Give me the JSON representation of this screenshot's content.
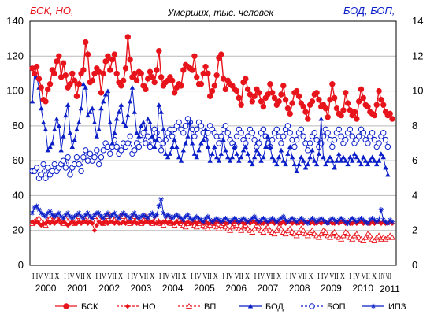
{
  "chart_data": {
    "type": "line",
    "title": "Умерших, тыс. человек",
    "left_axis_title": "БСК, НО,",
    "right_axis_title": "БОД, БОП,",
    "left_axis": {
      "ylim": [
        0,
        140
      ],
      "ticks": [
        "0",
        "20",
        "40",
        "60",
        "80",
        "100",
        "120",
        "140"
      ]
    },
    "right_axis": {
      "ylim": [
        0,
        14
      ],
      "ticks": [
        "0",
        "2",
        "4",
        "6",
        "8",
        "10",
        "12",
        "14"
      ]
    },
    "years": [
      "2000",
      "2001",
      "2002",
      "2003",
      "2004",
      "2005",
      "2006",
      "2007",
      "2008",
      "2009",
      "2010",
      "2011"
    ],
    "month_marks_label": "I IV VII X",
    "month_marks_last": "I IV VII",
    "colors": {
      "red": "#e8141c",
      "blue": "#0a1ec8",
      "grid": "#b9b9b9"
    },
    "series": [
      {
        "name": "БСК",
        "axis": "left",
        "color": "#e8141c",
        "marker": "circle-filled",
        "dash": "solid",
        "values": [
          113,
          110,
          114,
          107,
          102,
          95,
          94,
          101,
          104,
          112,
          110,
          117,
          120,
          108,
          116,
          109,
          102,
          104,
          110,
          106,
          97,
          104,
          110,
          112,
          128,
          121,
          105,
          106,
          110,
          113,
          111,
          99,
          110,
          117,
          120,
          112,
          118,
          121,
          110,
          105,
          103,
          106,
          113,
          131,
          118,
          108,
          110,
          106,
          111,
          110,
          103,
          101,
          107,
          111,
          108,
          105,
          112,
          123,
          108,
          103,
          105,
          106,
          108,
          106,
          99,
          102,
          104,
          103,
          112,
          115,
          114,
          113,
          112,
          120,
          108,
          104,
          104,
          110,
          114,
          110,
          97,
          100,
          103,
          109,
          119,
          121,
          107,
          101,
          106,
          104,
          103,
          101,
          100,
          96,
          92,
          105,
          107,
          101,
          98,
          94,
          97,
          101,
          99,
          94,
          91,
          96,
          98,
          104,
          99,
          96,
          92,
          94,
          98,
          103,
          95,
          90,
          87,
          93,
          99,
          100,
          97,
          93,
          91,
          88,
          84,
          92,
          94,
          98,
          99,
          95,
          91,
          92,
          90,
          85,
          95,
          104,
          96,
          90,
          87,
          86,
          89,
          99,
          93,
          89,
          86,
          88,
          84,
          94,
          101,
          96,
          92,
          91,
          88,
          87,
          86,
          92,
          100,
          95,
          92,
          88,
          86,
          87,
          84
        ]
      },
      {
        "name": "НО",
        "axis": "left",
        "color": "#e8141c",
        "marker": "diamond-filled",
        "dash": "dashed",
        "values": [
          25,
          24,
          25,
          24,
          23,
          24,
          24,
          25,
          24,
          25,
          24,
          25,
          26,
          24,
          25,
          24,
          23,
          24,
          25,
          24,
          24,
          25,
          24,
          25,
          25,
          24,
          25,
          24,
          20,
          23,
          25,
          24,
          24,
          25,
          24,
          25,
          25,
          24,
          25,
          24,
          24,
          25,
          24,
          25,
          25,
          24,
          25,
          24,
          24,
          25,
          24,
          25,
          25,
          24,
          25,
          24,
          24,
          25,
          24,
          25,
          25,
          24,
          25,
          24,
          24,
          25,
          24,
          25,
          25,
          24,
          25,
          24,
          24,
          25,
          24,
          25,
          25,
          24,
          25,
          24,
          24,
          25,
          24,
          25,
          25,
          24,
          25,
          24,
          24,
          25,
          24,
          25,
          25,
          24,
          25,
          24,
          24,
          25,
          24,
          25,
          25,
          24,
          25,
          24,
          24,
          25,
          24,
          25,
          25,
          24,
          25,
          24,
          24,
          25,
          24,
          25,
          25,
          24,
          25,
          24,
          24,
          25,
          24,
          25,
          25,
          24,
          25,
          24,
          24,
          25,
          24,
          25,
          25,
          24,
          25,
          24,
          24,
          25,
          24,
          25,
          25,
          24,
          25,
          24,
          24,
          25,
          24,
          25,
          25,
          24,
          25,
          24,
          24,
          25,
          24,
          25,
          25,
          24,
          25,
          24,
          24,
          25,
          24
        ]
      },
      {
        "name": "ВП",
        "axis": "left",
        "color": "#e8141c",
        "marker": "triangle-open",
        "dash": "dashed",
        "values": [
          24,
          25,
          26,
          27,
          25,
          24,
          23,
          26,
          27,
          25,
          28,
          27,
          26,
          25,
          24,
          27,
          29,
          27,
          25,
          24,
          26,
          28,
          27,
          25,
          26,
          29,
          27,
          26,
          28,
          29,
          27,
          25,
          24,
          26,
          28,
          29,
          27,
          26,
          25,
          27,
          29,
          28,
          26,
          25,
          24,
          27,
          28,
          26,
          25,
          24,
          26,
          28,
          27,
          25,
          24,
          26,
          27,
          25,
          24,
          23,
          25,
          27,
          26,
          24,
          23,
          25,
          26,
          24,
          23,
          22,
          24,
          26,
          25,
          23,
          22,
          24,
          25,
          23,
          22,
          21,
          23,
          25,
          24,
          22,
          21,
          23,
          24,
          22,
          21,
          20,
          22,
          24,
          23,
          21,
          20,
          22,
          23,
          21,
          20,
          19,
          21,
          23,
          22,
          20,
          19,
          21,
          22,
          20,
          19,
          18,
          20,
          22,
          21,
          19,
          18,
          20,
          21,
          19,
          18,
          17,
          19,
          21,
          20,
          18,
          17,
          19,
          20,
          18,
          17,
          16,
          18,
          20,
          19,
          17,
          16,
          18,
          19,
          17,
          16,
          15,
          17,
          19,
          18,
          16,
          15,
          17,
          18,
          16,
          15,
          14,
          16,
          18,
          17,
          15,
          14,
          16,
          17,
          15,
          16,
          15,
          16,
          17,
          16
        ]
      },
      {
        "name": "БОД",
        "axis": "right",
        "color": "#0a1ec8",
        "marker": "triangle-filled",
        "dash": "solid",
        "values": [
          9.4,
          11.0,
          10.8,
          10.2,
          9.0,
          8.2,
          7.8,
          6.6,
          6.8,
          7.0,
          7.8,
          8.4,
          8.0,
          6.6,
          7.4,
          8.6,
          9.2,
          7.6,
          6.8,
          7.2,
          7.8,
          8.2,
          9.0,
          10.4,
          10.2,
          8.6,
          8.8,
          9.0,
          8.2,
          7.4,
          7.8,
          9.0,
          9.4,
          9.8,
          10.0,
          8.2,
          7.0,
          7.6,
          8.4,
          8.8,
          9.2,
          8.2,
          8.0,
          8.6,
          9.4,
          10.2,
          8.8,
          7.6,
          7.4,
          8.0,
          8.2,
          7.8,
          8.4,
          8.2,
          7.4,
          6.8,
          7.2,
          9.2,
          8.8,
          7.8,
          6.4,
          6.2,
          6.4,
          6.8,
          7.2,
          6.8,
          6.2,
          6.0,
          6.6,
          7.0,
          7.4,
          8.2,
          7.0,
          6.4,
          6.2,
          6.6,
          7.0,
          7.2,
          7.8,
          6.8,
          6.0,
          6.4,
          6.8,
          6.2,
          6.0,
          6.4,
          7.2,
          6.6,
          6.2,
          6.0,
          6.2,
          6.8,
          6.4,
          6.0,
          6.2,
          6.6,
          6.8,
          6.4,
          6.0,
          5.8,
          6.2,
          6.6,
          6.4,
          6.0,
          6.2,
          6.8,
          7.4,
          6.8,
          6.2,
          6.0,
          5.8,
          6.2,
          6.6,
          6.0,
          5.8,
          6.4,
          6.8,
          6.2,
          5.8,
          5.4,
          5.8,
          6.2,
          6.0,
          5.6,
          5.8,
          6.2,
          6.6,
          6.0,
          5.8,
          6.4,
          8.4,
          6.2,
          5.8,
          6.0,
          6.2,
          6.0,
          5.6,
          6.0,
          6.4,
          6.0,
          6.2,
          6.0,
          5.8,
          6.2,
          6.0,
          6.4,
          6.2,
          6.0,
          5.8,
          6.2,
          6.0,
          5.8,
          6.0,
          6.2,
          6.0,
          5.8,
          6.0,
          6.4,
          6.2,
          5.6,
          5.2
        ]
      },
      {
        "name": "БОП",
        "axis": "right",
        "color": "#0a1ec8",
        "marker": "circle-open",
        "dash": "dashed",
        "values": [
          5.4,
          5.4,
          5.6,
          5.0,
          5.2,
          5.8,
          5.0,
          5.6,
          5.2,
          5.4,
          5.8,
          5.4,
          5.6,
          5.8,
          6.0,
          5.6,
          6.2,
          5.2,
          5.6,
          5.8,
          6.2,
          5.8,
          5.4,
          6.2,
          6.6,
          6.0,
          6.4,
          6.0,
          6.2,
          6.6,
          5.8,
          6.2,
          6.6,
          7.0,
          6.8,
          6.4,
          6.8,
          7.2,
          6.8,
          6.4,
          6.6,
          7.0,
          6.8,
          7.0,
          7.4,
          6.4,
          6.6,
          7.0,
          6.8,
          7.2,
          7.6,
          7.0,
          7.4,
          6.8,
          7.2,
          7.8,
          7.6,
          7.2,
          6.6,
          7.0,
          7.2,
          7.6,
          7.8,
          7.4,
          7.8,
          8.0,
          8.2,
          7.8,
          7.6,
          8.0,
          8.4,
          8.2,
          7.8,
          7.4,
          7.8,
          8.2,
          8.0,
          7.6,
          7.2,
          7.6,
          8.0,
          7.8,
          7.6,
          7.4,
          7.0,
          7.4,
          7.8,
          8.0,
          7.6,
          7.2,
          7.0,
          6.8,
          7.4,
          7.8,
          7.6,
          7.2,
          7.0,
          7.4,
          7.8,
          7.6,
          7.2,
          6.8,
          7.0,
          7.6,
          7.8,
          7.4,
          7.0,
          6.8,
          7.2,
          7.6,
          7.8,
          7.4,
          7.0,
          7.4,
          7.8,
          8.0,
          7.6,
          7.2,
          6.8,
          7.2,
          7.6,
          7.8,
          7.4,
          7.0,
          6.6,
          7.0,
          7.4,
          7.6,
          7.2,
          6.8,
          7.0,
          7.4,
          7.8,
          7.6,
          7.2,
          6.8,
          7.2,
          7.6,
          7.8,
          7.4,
          7.0,
          7.2,
          7.6,
          7.8,
          7.4,
          7.0,
          7.2,
          7.4,
          7.8,
          7.6,
          7.2,
          7.0,
          7.4,
          7.6,
          7.2,
          6.8,
          7.0,
          7.4,
          7.6,
          7.2,
          6.8
        ]
      },
      {
        "name": "ИПЗ",
        "axis": "right",
        "color": "#0a1ec8",
        "marker": "star",
        "dash": "solid",
        "values": [
          3.0,
          3.3,
          3.4,
          3.2,
          3.0,
          2.9,
          2.8,
          3.0,
          3.1,
          2.9,
          2.8,
          2.9,
          3.0,
          2.8,
          2.7,
          2.9,
          3.0,
          2.8,
          2.7,
          2.8,
          2.9,
          3.0,
          2.8,
          2.7,
          2.9,
          3.0,
          2.8,
          2.7,
          2.9,
          3.0,
          3.0,
          2.8,
          2.7,
          2.9,
          3.0,
          2.8,
          2.9,
          3.0,
          2.8,
          2.7,
          2.9,
          3.0,
          2.9,
          2.8,
          2.7,
          2.9,
          3.0,
          2.8,
          2.7,
          2.8,
          2.9,
          2.8,
          2.7,
          2.9,
          3.0,
          2.8,
          2.9,
          3.4,
          3.8,
          3.0,
          2.8,
          2.9,
          2.8,
          2.7,
          2.8,
          2.9,
          2.8,
          2.7,
          2.6,
          2.8,
          2.9,
          2.7,
          2.6,
          2.7,
          2.8,
          2.7,
          2.6,
          2.5,
          2.7,
          2.8,
          2.6,
          2.5,
          2.6,
          2.7,
          2.6,
          2.5,
          2.6,
          2.7,
          2.6,
          2.5,
          2.6,
          2.7,
          2.6,
          2.5,
          2.6,
          2.7,
          2.6,
          2.5,
          2.6,
          2.7,
          2.8,
          2.6,
          2.5,
          2.6,
          2.7,
          2.6,
          2.5,
          2.6,
          2.7,
          2.6,
          2.5,
          2.6,
          2.7,
          2.8,
          2.6,
          2.5,
          2.6,
          2.7,
          2.6,
          2.5,
          2.6,
          2.7,
          2.6,
          2.5,
          2.4,
          2.6,
          2.7,
          2.6,
          2.5,
          2.6,
          2.7,
          2.6,
          2.5,
          2.4,
          2.6,
          2.7,
          2.6,
          2.5,
          2.6,
          2.7,
          2.6,
          2.5,
          2.4,
          2.6,
          2.7,
          2.6,
          2.5,
          2.6,
          2.7,
          2.6,
          2.5,
          2.4,
          2.6,
          2.7,
          2.6,
          2.5,
          2.6,
          3.2,
          2.6,
          2.5,
          2.4,
          2.6,
          2.5
        ]
      }
    ]
  }
}
